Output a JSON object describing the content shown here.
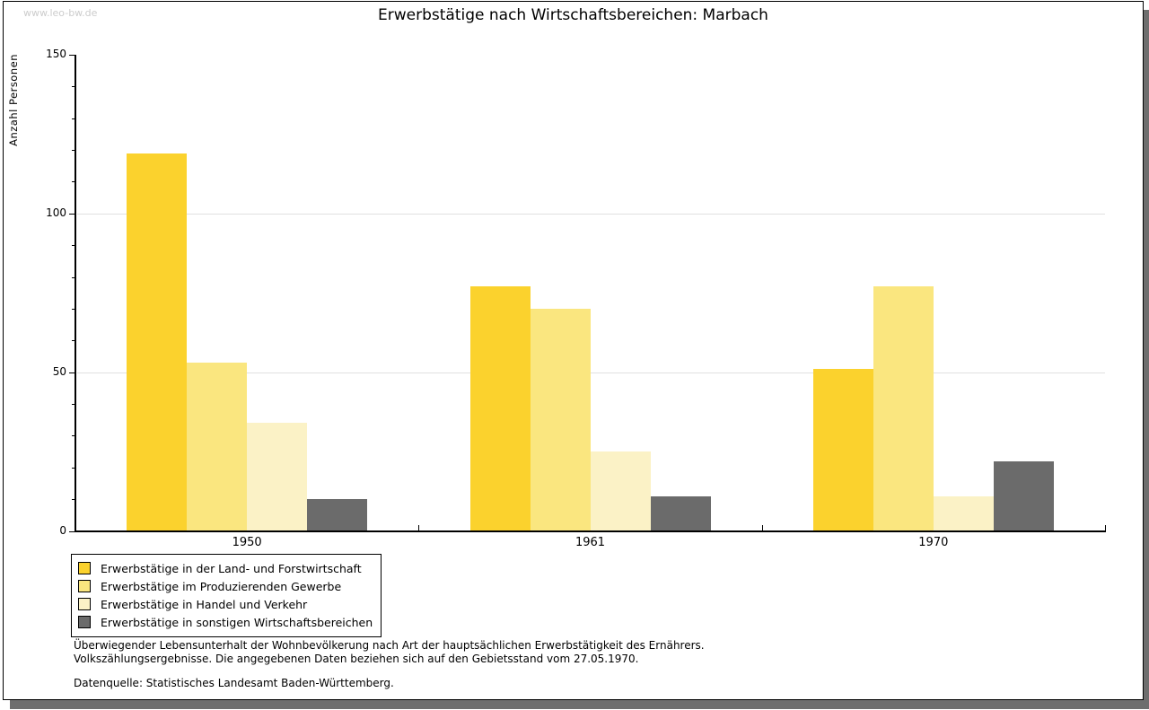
{
  "watermark": "www.leo-bw.de",
  "title": "Erwerbstätige nach Wirtschaftsbereichen: Marbach",
  "chart_data": {
    "type": "bar",
    "title": "Erwerbstätige nach Wirtschaftsbereichen: Marbach",
    "xlabel": "",
    "ylabel": "Anzahl Personen",
    "categories": [
      "1950",
      "1961",
      "1970"
    ],
    "series": [
      {
        "name": "Erwerbstätige in der Land- und Forstwirtschaft",
        "color": "#FBD22D",
        "values": [
          119,
          77,
          51
        ]
      },
      {
        "name": "Erwerbstätige im Produzierenden Gewerbe",
        "color": "#FAE67F",
        "values": [
          53,
          70,
          77
        ]
      },
      {
        "name": "Erwerbstätige in Handel und Verkehr",
        "color": "#FBF2C6",
        "values": [
          34,
          25,
          11
        ]
      },
      {
        "name": "Erwerbstätige in sonstigen Wirtschaftsbereichen",
        "color": "#6B6B6B",
        "values": [
          10,
          11,
          22
        ]
      }
    ],
    "ylim": [
      0,
      150
    ],
    "yticks_major": [
      0,
      50,
      100,
      150
    ],
    "ytick_minor_step": 10,
    "gridlines_at": [
      50,
      100
    ],
    "grid": true,
    "legend_position": "bottom-left"
  },
  "footer": {
    "line1": "Überwiegender Lebensunterhalt der Wohnbevölkerung nach Art der hauptsächlichen Erwerbstätigkeit des Ernährers.",
    "line2": "Volkszählungsergebnisse. Die angegebenen Daten beziehen sich auf den Gebietsstand vom 27.05.1970.",
    "source": "Datenquelle: Statistisches Landesamt Baden-Württemberg."
  },
  "colors": {
    "page_shadow": "#6E6E6E",
    "grid": "#E0E0E0",
    "axis": "#000000",
    "watermark": "#CCCCCC"
  }
}
